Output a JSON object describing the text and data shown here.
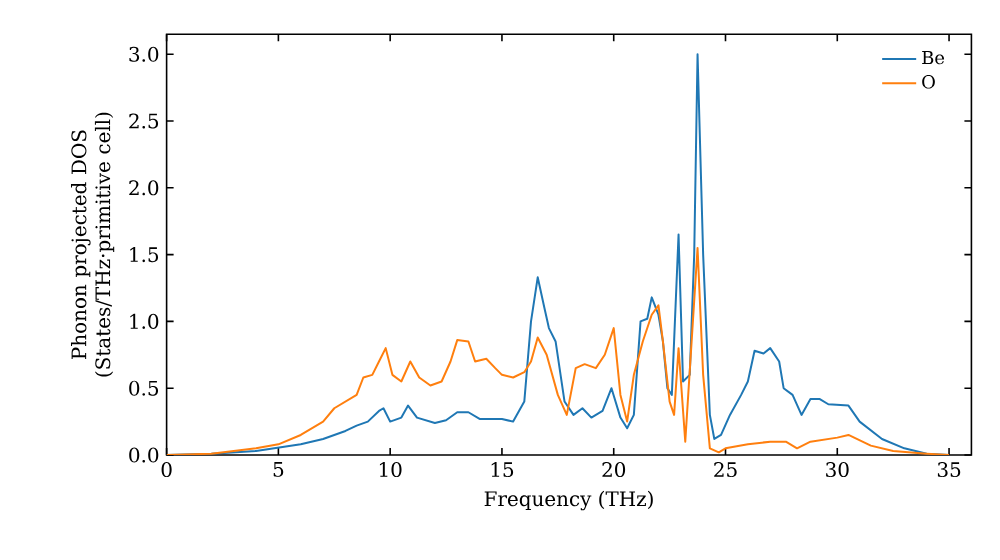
{
  "chart_data": {
    "type": "line",
    "xlabel": "Frequency (THz)",
    "ylabel": "Phonon projected DOS (States/THz·primitive cell)",
    "xlim": [
      0,
      36
    ],
    "ylim": [
      0,
      3.15
    ],
    "xticks": [
      0,
      5,
      10,
      15,
      20,
      25,
      30,
      35
    ],
    "yticks": [
      {
        "value": 0,
        "label": "0.0"
      },
      0.5,
      {
        "value": 1,
        "label": "1.0"
      },
      1.5,
      {
        "value": 2,
        "label": "2.0"
      },
      2.5,
      {
        "value": 3,
        "label": "3.0"
      }
    ],
    "grid": false,
    "legend": "top right",
    "marker": "none",
    "line_style": "solid",
    "series": [
      {
        "name": "Be",
        "color": "#1f77b4",
        "x": [
          0,
          2,
          4,
          6,
          7,
          8,
          8.5,
          9,
          9.5,
          9.7,
          10,
          10.5,
          10.8,
          11.2,
          12,
          12.5,
          13,
          13.5,
          14,
          15,
          15.5,
          16,
          16.3,
          16.6,
          16.9,
          17.1,
          17.4,
          17.8,
          18.2,
          18.6,
          19,
          19.5,
          19.9,
          20.3,
          20.6,
          20.9,
          21.2,
          21.5,
          21.7,
          22.0,
          22.2,
          22.4,
          22.6,
          22.9,
          23.1,
          23.4,
          23.6,
          23.75,
          24.0,
          24.3,
          24.5,
          24.8,
          25.2,
          25.7,
          26.0,
          26.3,
          26.7,
          27.0,
          27.4,
          27.6,
          28.0,
          28.4,
          28.8,
          29.2,
          29.6,
          30.5,
          31,
          32,
          33,
          34,
          35
        ],
        "values": [
          0,
          0.01,
          0.03,
          0.08,
          0.12,
          0.18,
          0.22,
          0.25,
          0.33,
          0.35,
          0.25,
          0.28,
          0.37,
          0.28,
          0.24,
          0.26,
          0.32,
          0.32,
          0.27,
          0.27,
          0.25,
          0.4,
          1.0,
          1.33,
          1.1,
          0.95,
          0.85,
          0.4,
          0.3,
          0.35,
          0.28,
          0.33,
          0.5,
          0.28,
          0.2,
          0.3,
          1.0,
          1.02,
          1.18,
          1.05,
          0.85,
          0.5,
          0.45,
          1.65,
          0.55,
          0.6,
          1.5,
          3.0,
          1.5,
          0.3,
          0.12,
          0.15,
          0.3,
          0.45,
          0.55,
          0.78,
          0.76,
          0.8,
          0.7,
          0.5,
          0.45,
          0.3,
          0.42,
          0.42,
          0.38,
          0.37,
          0.25,
          0.12,
          0.05,
          0.01,
          0
        ]
      },
      {
        "name": "O",
        "color": "#ff7f0e",
        "x": [
          0,
          2,
          4,
          5,
          6,
          7,
          7.5,
          8,
          8.5,
          8.8,
          9.2,
          9.5,
          9.8,
          10.1,
          10.5,
          10.9,
          11.3,
          11.8,
          12.3,
          12.7,
          13,
          13.5,
          13.8,
          14.3,
          14.7,
          15,
          15.5,
          16,
          16.3,
          16.6,
          17,
          17.5,
          17.9,
          18.3,
          18.7,
          19.2,
          19.6,
          20,
          20.3,
          20.6,
          20.9,
          21.3,
          21.7,
          22,
          22.2,
          22.5,
          22.7,
          22.9,
          23.2,
          23.75,
          24.0,
          24.3,
          24.7,
          25,
          26,
          27,
          27.7,
          28.2,
          28.8,
          30,
          30.5,
          31.5,
          32.5,
          34,
          35
        ],
        "values": [
          0,
          0.01,
          0.05,
          0.08,
          0.15,
          0.25,
          0.35,
          0.4,
          0.45,
          0.58,
          0.6,
          0.7,
          0.8,
          0.6,
          0.55,
          0.7,
          0.58,
          0.52,
          0.55,
          0.7,
          0.86,
          0.85,
          0.7,
          0.72,
          0.65,
          0.6,
          0.58,
          0.62,
          0.7,
          0.88,
          0.75,
          0.45,
          0.3,
          0.65,
          0.68,
          0.65,
          0.75,
          0.95,
          0.45,
          0.25,
          0.6,
          0.85,
          1.05,
          1.12,
          0.85,
          0.4,
          0.3,
          0.8,
          0.1,
          1.55,
          0.6,
          0.05,
          0.02,
          0.05,
          0.08,
          0.1,
          0.1,
          0.05,
          0.1,
          0.13,
          0.15,
          0.07,
          0.03,
          0.01,
          0
        ]
      }
    ]
  }
}
